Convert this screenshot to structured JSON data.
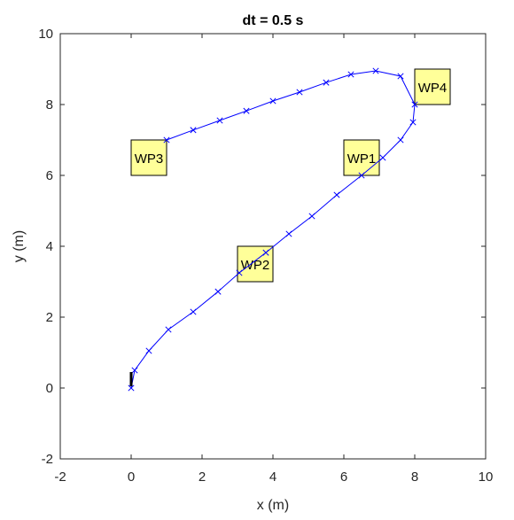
{
  "chart_data": {
    "type": "line",
    "title": "dt = 0.5 s",
    "xlabel": "x (m)",
    "ylabel": "y (m)",
    "xlim": [
      -2,
      10
    ],
    "ylim": [
      -2,
      10
    ],
    "xticks": [
      "-2",
      "0",
      "2",
      "4",
      "6",
      "8",
      "10"
    ],
    "yticks": [
      "-2",
      "0",
      "2",
      "4",
      "6",
      "8",
      "10"
    ],
    "grid": false,
    "series": [
      {
        "marker": "x",
        "color": "#0000ff",
        "x": [
          0.0,
          0.1,
          0.5,
          1.05,
          1.75,
          2.45,
          3.05,
          3.8,
          4.45,
          5.1,
          5.8,
          6.5,
          7.1,
          7.6,
          7.95,
          8.0,
          7.6,
          6.9,
          6.2,
          5.5,
          4.75,
          4.0,
          3.25,
          2.5,
          1.75,
          1.0
        ],
        "y": [
          0.0,
          0.5,
          1.05,
          1.65,
          2.15,
          2.72,
          3.25,
          3.82,
          4.35,
          4.85,
          5.45,
          6.0,
          6.5,
          7.0,
          7.5,
          8.0,
          8.8,
          8.95,
          8.85,
          8.62,
          8.35,
          8.1,
          7.82,
          7.55,
          7.28,
          7.0
        ]
      }
    ],
    "waypoints": [
      {
        "label": "WP1",
        "x": 6.5,
        "y": 6.5
      },
      {
        "label": "WP2",
        "x": 3.5,
        "y": 3.5
      },
      {
        "label": "WP3",
        "x": 0.5,
        "y": 6.5
      },
      {
        "label": "WP4",
        "x": 8.5,
        "y": 8.5
      }
    ],
    "waypoint_color": "#ffff99",
    "start_marker": {
      "x": 0.0,
      "y": 0.0
    }
  }
}
